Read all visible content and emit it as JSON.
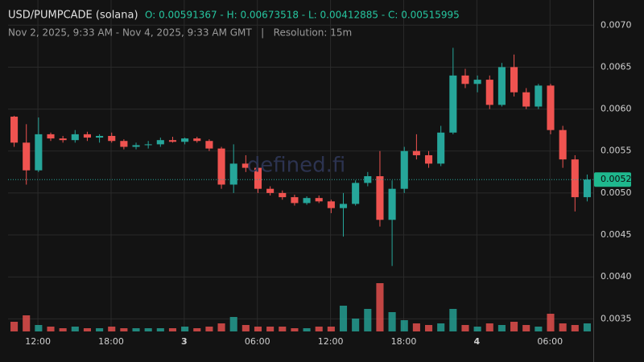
{
  "chart_data": {
    "type": "candlestick",
    "title": "USD/PUMPCADE (solana)",
    "ohlc_text": "O: 0.00591367 - H: 0.00673518 - L: 0.00412885 - C: 0.00515995",
    "subtitle": "Nov 2, 2025, 9:33 AM - Nov 4, 2025, 9:33 AM GMT   |   Resolution: 15m",
    "watermark": "defined.fi",
    "up_color": "#26a69a",
    "down_color": "#ef5350",
    "grid": true,
    "xlim": [
      "2025-11-02T09:33",
      "2025-11-04T09:33"
    ],
    "xticks": [
      {
        "value": "2025-11-02T12:00",
        "label": "12:00"
      },
      {
        "value": "2025-11-02T18:00",
        "label": "18:00"
      },
      {
        "value": "2025-11-03T00:00",
        "label": "3"
      },
      {
        "value": "2025-11-03T06:00",
        "label": "06:00"
      },
      {
        "value": "2025-11-03T12:00",
        "label": "12:00"
      },
      {
        "value": "2025-11-03T18:00",
        "label": "18:00"
      },
      {
        "value": "2025-11-04T00:00",
        "label": "4"
      },
      {
        "value": "2025-11-04T06:00",
        "label": "06:00"
      }
    ],
    "ylim": [
      0.00335,
      0.0073
    ],
    "yticks": [
      {
        "value": 0.007,
        "label": "0.0070"
      },
      0.0065,
      {
        "value": 0.006,
        "label": "0.0060"
      },
      0.0055,
      {
        "value": 0.005,
        "label": "0.0050"
      },
      0.0045,
      {
        "value": 0.004,
        "label": "0.0040"
      },
      0.0035
    ],
    "last_price": {
      "value": 0.00516,
      "label": "0.0052"
    },
    "x": [
      "2025-11-02T10:03",
      "2025-11-02T11:03",
      "2025-11-02T12:03",
      "2025-11-02T13:03",
      "2025-11-02T14:03",
      "2025-11-02T15:03",
      "2025-11-02T16:03",
      "2025-11-02T17:03",
      "2025-11-02T18:03",
      "2025-11-02T19:03",
      "2025-11-02T20:03",
      "2025-11-02T21:03",
      "2025-11-02T22:03",
      "2025-11-02T23:03",
      "2025-11-03T00:03",
      "2025-11-03T01:03",
      "2025-11-03T02:03",
      "2025-11-03T03:03",
      "2025-11-03T04:03",
      "2025-11-03T05:03",
      "2025-11-03T06:03",
      "2025-11-03T07:03",
      "2025-11-03T08:03",
      "2025-11-03T09:03",
      "2025-11-03T10:03",
      "2025-11-03T11:03",
      "2025-11-03T12:03",
      "2025-11-03T13:03",
      "2025-11-03T14:03",
      "2025-11-03T15:03",
      "2025-11-03T16:03",
      "2025-11-03T17:03",
      "2025-11-03T18:03",
      "2025-11-03T19:03",
      "2025-11-03T20:03",
      "2025-11-03T21:03",
      "2025-11-03T22:03",
      "2025-11-03T23:03",
      "2025-11-04T00:03",
      "2025-11-04T01:03",
      "2025-11-04T02:03",
      "2025-11-04T03:03",
      "2025-11-04T04:03",
      "2025-11-04T05:03",
      "2025-11-04T06:03",
      "2025-11-04T07:03",
      "2025-11-04T08:03",
      "2025-11-04T09:03"
    ],
    "open": [
      0.00591,
      0.0056,
      0.00527,
      0.0057,
      0.00565,
      0.00563,
      0.0057,
      0.00566,
      0.00568,
      0.00562,
      0.00555,
      0.00557,
      0.00558,
      0.00563,
      0.00561,
      0.00565,
      0.00562,
      0.00553,
      0.0051,
      0.00535,
      0.0053,
      0.00505,
      0.005,
      0.00495,
      0.00488,
      0.00494,
      0.0049,
      0.00482,
      0.00487,
      0.00512,
      0.0052,
      0.00468,
      0.00505,
      0.0055,
      0.00545,
      0.00535,
      0.00572,
      0.0064,
      0.0063,
      0.00635,
      0.00605,
      0.0065,
      0.0062,
      0.00603,
      0.00628,
      0.00575,
      0.0054,
      0.00495
    ],
    "high": [
      0.00592,
      0.00582,
      0.0059,
      0.00572,
      0.00568,
      0.00575,
      0.00573,
      0.0057,
      0.00572,
      0.00564,
      0.0056,
      0.00562,
      0.00566,
      0.00567,
      0.00566,
      0.00567,
      0.00564,
      0.00555,
      0.00558,
      0.00545,
      0.00535,
      0.00508,
      0.00503,
      0.00498,
      0.00496,
      0.00497,
      0.00492,
      0.005,
      0.00515,
      0.00525,
      0.0055,
      0.00515,
      0.00555,
      0.0057,
      0.0055,
      0.0058,
      0.00673,
      0.00648,
      0.0064,
      0.0064,
      0.00655,
      0.00665,
      0.00625,
      0.0063,
      0.0063,
      0.0058,
      0.00545,
      0.00522
    ],
    "low": [
      0.00555,
      0.0051,
      0.00525,
      0.00562,
      0.0056,
      0.0056,
      0.00562,
      0.0056,
      0.0056,
      0.00552,
      0.00552,
      0.00553,
      0.00555,
      0.0056,
      0.00558,
      0.0056,
      0.0055,
      0.00505,
      0.005,
      0.00525,
      0.005,
      0.00497,
      0.00492,
      0.00485,
      0.00486,
      0.00488,
      0.00476,
      0.00448,
      0.00485,
      0.00508,
      0.0046,
      0.00413,
      0.005,
      0.0054,
      0.0053,
      0.00532,
      0.0057,
      0.00625,
      0.0062,
      0.006,
      0.00603,
      0.00615,
      0.006,
      0.006,
      0.0057,
      0.0053,
      0.00478,
      0.0049
    ],
    "close": [
      0.0056,
      0.00527,
      0.0057,
      0.00565,
      0.00563,
      0.0057,
      0.00566,
      0.00568,
      0.00562,
      0.00555,
      0.00557,
      0.00558,
      0.00563,
      0.00561,
      0.00565,
      0.00562,
      0.00553,
      0.0051,
      0.00535,
      0.0053,
      0.00505,
      0.005,
      0.00495,
      0.00488,
      0.00494,
      0.0049,
      0.00482,
      0.00487,
      0.00512,
      0.0052,
      0.00468,
      0.00505,
      0.0055,
      0.00545,
      0.00535,
      0.00572,
      0.0064,
      0.0063,
      0.00635,
      0.00605,
      0.0065,
      0.0062,
      0.00603,
      0.00628,
      0.00575,
      0.0054,
      0.00495,
      0.00516
    ],
    "volume": [
      6,
      10,
      4,
      3,
      2,
      3,
      2,
      2,
      3,
      2,
      2,
      2,
      2,
      2,
      3,
      2,
      3,
      5,
      9,
      4,
      3,
      3,
      3,
      2,
      2,
      3,
      3,
      16,
      8,
      14,
      30,
      12,
      7,
      5,
      4,
      5,
      14,
      4,
      3,
      5,
      4,
      6,
      4,
      3,
      11,
      5,
      4,
      5
    ]
  }
}
